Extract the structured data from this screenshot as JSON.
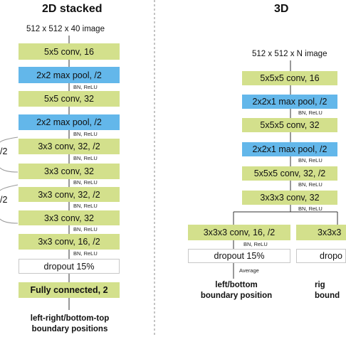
{
  "left": {
    "title": "2D stacked",
    "input": "512 x 512 x 40 image",
    "layers": [
      {
        "text": "5x5 conv, 16",
        "kind": "conv"
      },
      {
        "text": "2x2 max pool, /2",
        "kind": "pool"
      },
      {
        "text": "5x5 conv, 32",
        "kind": "conv"
      },
      {
        "text": "2x2 max pool, /2",
        "kind": "pool"
      },
      {
        "text": "3x3 conv, 32, /2",
        "kind": "conv"
      },
      {
        "text": "3x3 conv, 32",
        "kind": "conv"
      },
      {
        "text": "3x3 conv, 32, /2",
        "kind": "conv"
      },
      {
        "text": "3x3 conv, 32",
        "kind": "conv"
      },
      {
        "text": "3x3 conv, 16, /2",
        "kind": "conv"
      },
      {
        "text": "dropout 15%",
        "kind": "dropout"
      },
      {
        "text": "Fully connected, 2",
        "kind": "fc"
      }
    ],
    "bn_relu": "BN, ReLU",
    "side_labels": [
      "/2",
      "/2"
    ],
    "output": [
      "left-right/bottom-top",
      "boundary positions"
    ]
  },
  "right": {
    "title": "3D",
    "input": "512 x 512 x N image",
    "layers": [
      {
        "text": "5x5x5 conv, 16",
        "kind": "conv"
      },
      {
        "text": "2x2x1 max pool, /2",
        "kind": "pool"
      },
      {
        "text": "5x5x5 conv, 32",
        "kind": "conv"
      },
      {
        "text": "2x2x1 max pool, /2",
        "kind": "pool"
      },
      {
        "text": "5x5x5 conv, 32, /2",
        "kind": "conv"
      },
      {
        "text": "3x3x3 conv, 32",
        "kind": "conv"
      }
    ],
    "bn_relu": "BN, ReLU",
    "branch_a": {
      "conv": "3x3x3 conv, 16, /2",
      "bn_relu": "BN, ReLU",
      "dropout": "dropout 15%",
      "average": "Average",
      "output": [
        "left/bottom",
        "boundary position"
      ]
    },
    "branch_b": {
      "conv": "3x3x3",
      "dropout": "dropo",
      "output": [
        "rig",
        "bound"
      ]
    }
  },
  "colors": {
    "conv": "#d3e08c",
    "pool": "#63b7ea",
    "dropout": "#ffffff",
    "divider": "#888888"
  }
}
